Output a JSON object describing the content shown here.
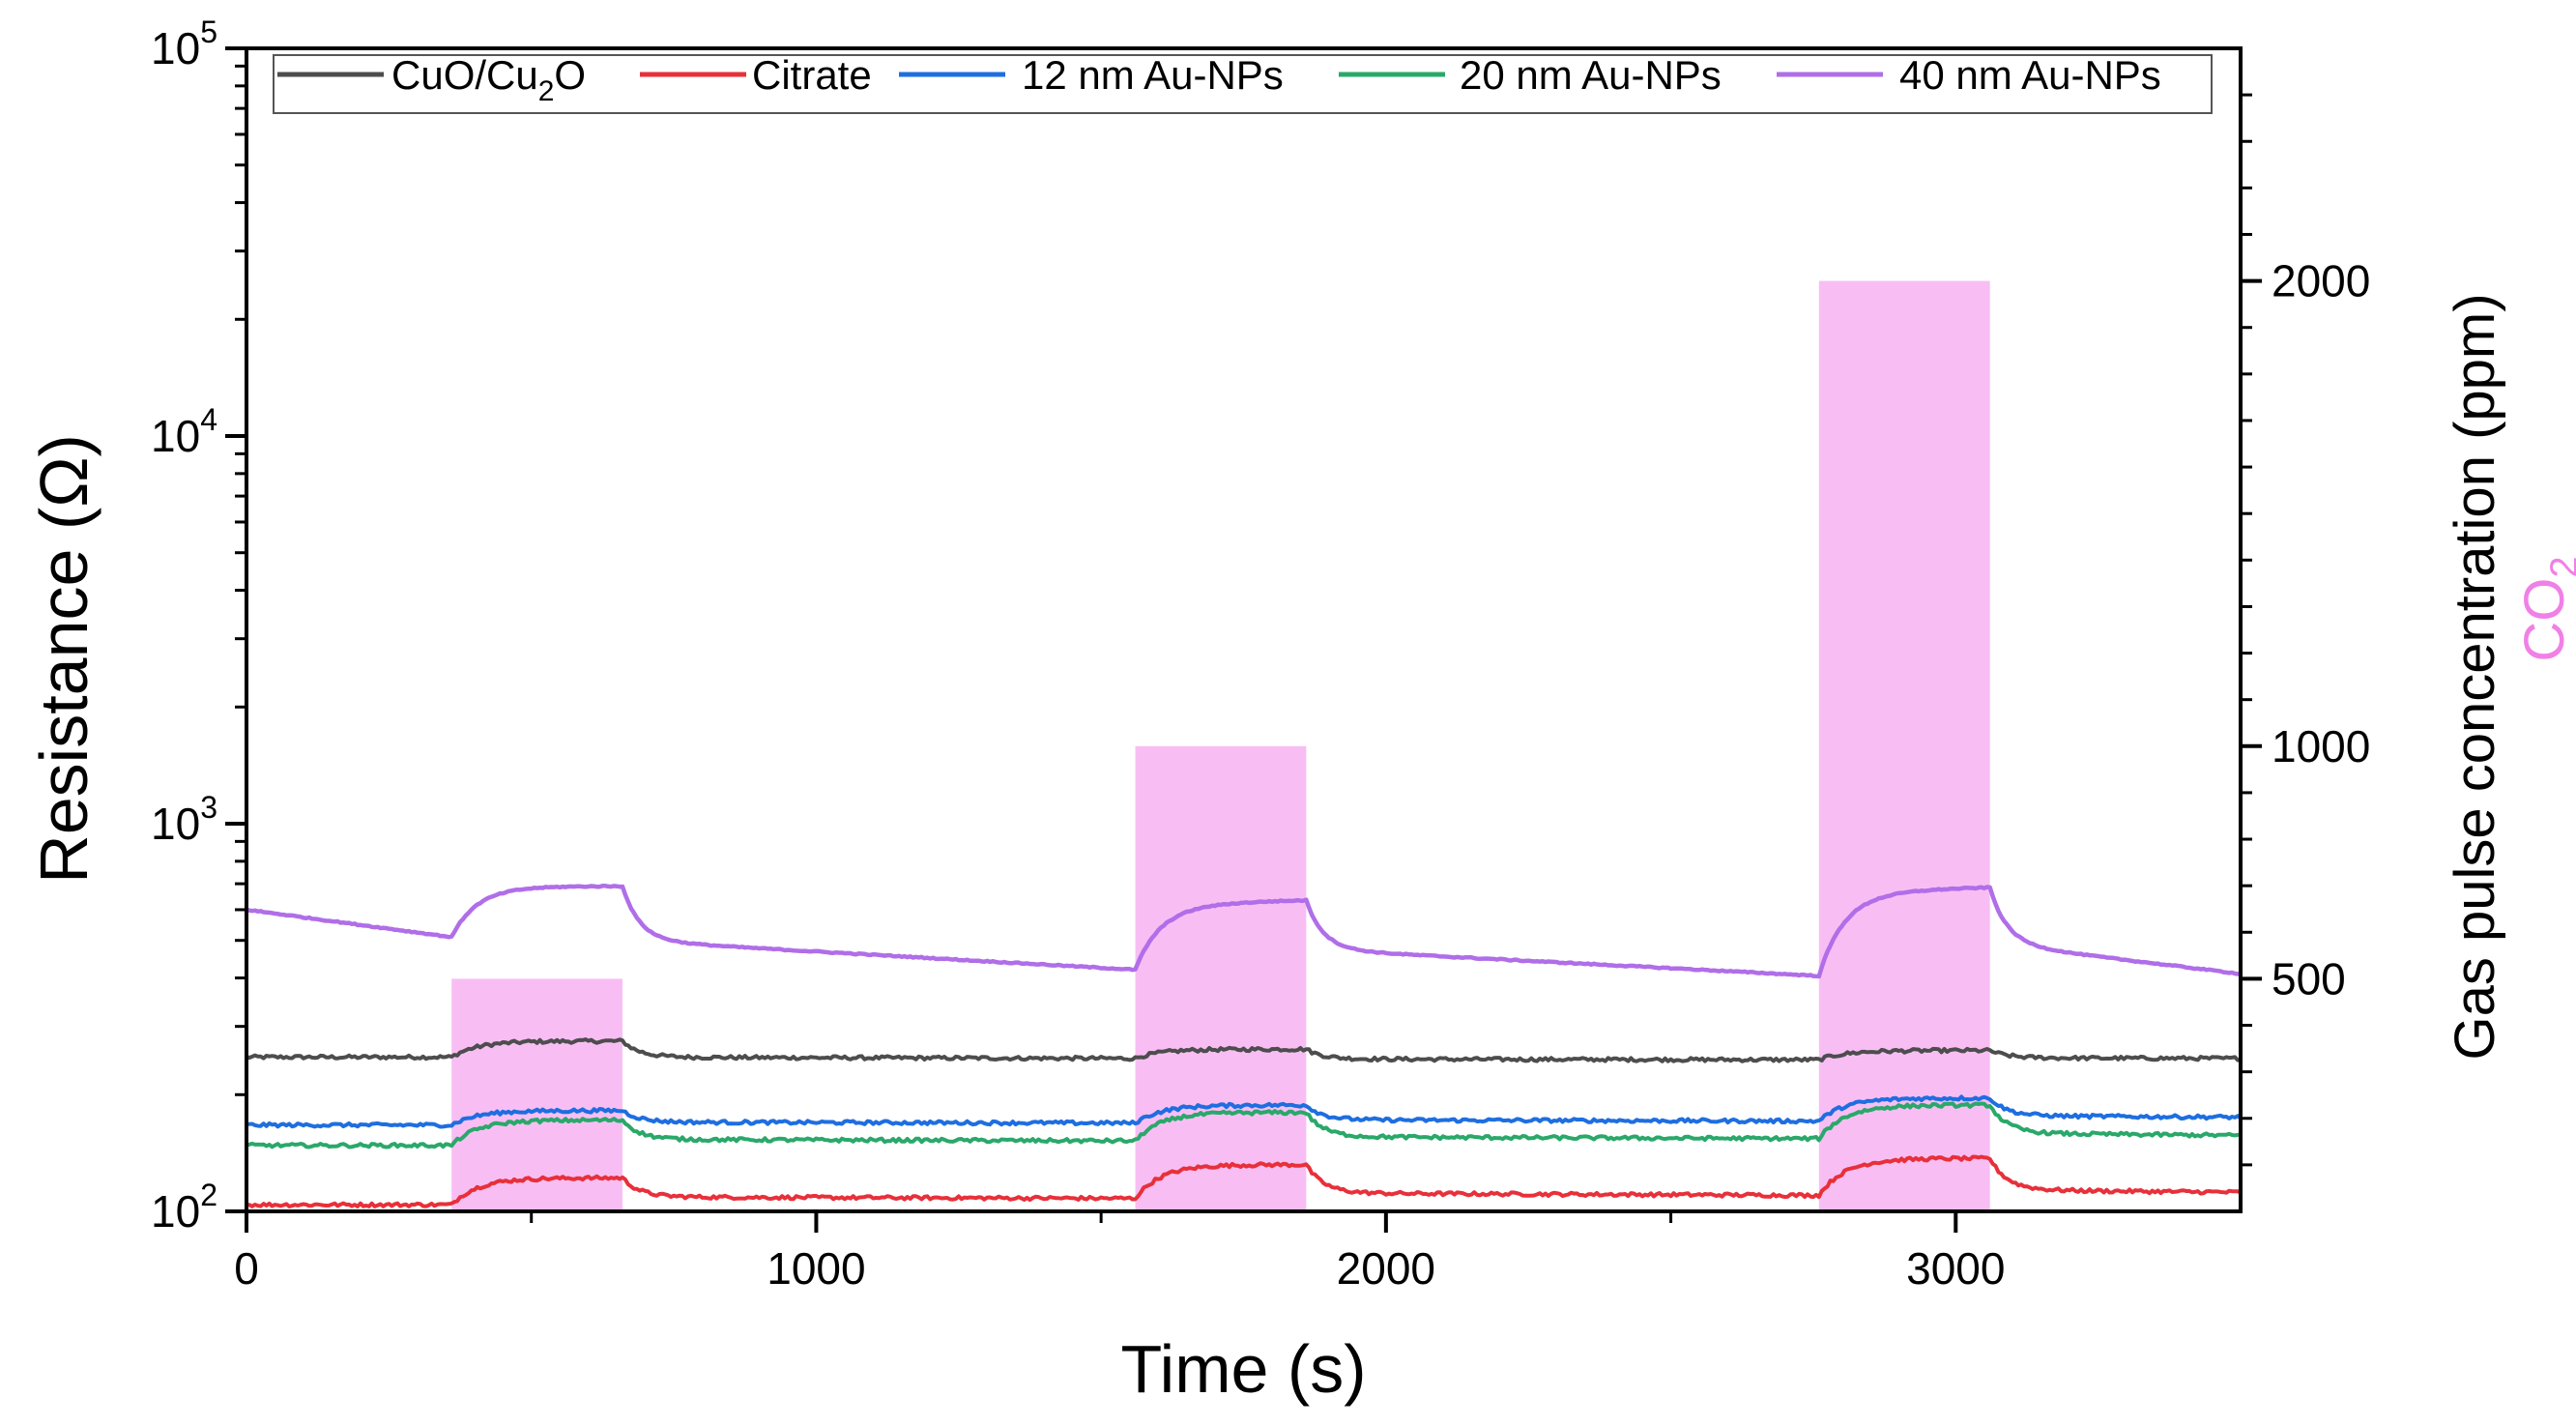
{
  "chart_data": {
    "type": "line",
    "xlabel": "Time (s)",
    "ylabel": "Resistance (Ω)",
    "y2label": "Gas pulse concentration (ppm)",
    "y2label_gas": "CO",
    "y2label_gas_sub": "2",
    "xlim": [
      0,
      3500
    ],
    "ylim": [
      100,
      100000
    ],
    "yscale": "log",
    "y2lim": [
      0,
      2500
    ],
    "x_ticks": [
      0,
      1000,
      2000,
      3000
    ],
    "x_tick_labels": [
      "0",
      "1000",
      "2000",
      "3000"
    ],
    "y_ticks": [
      100,
      1000,
      10000,
      100000
    ],
    "y_tick_labels": [
      {
        "base": "10",
        "exp": "2"
      },
      {
        "base": "10",
        "exp": "3"
      },
      {
        "base": "10",
        "exp": "4"
      },
      {
        "base": "10",
        "exp": "5"
      }
    ],
    "y2_ticks": [
      500,
      1000,
      2000
    ],
    "y2_tick_labels": [
      "500",
      "1000",
      "2000"
    ],
    "gas_color": "#f5a3f0",
    "gas_label_color": "#f080e6",
    "gas_pulses": [
      {
        "start": 360,
        "end": 660,
        "ppm": 500
      },
      {
        "start": 1560,
        "end": 1860,
        "ppm": 1000
      },
      {
        "start": 2760,
        "end": 3060,
        "ppm": 2000
      }
    ],
    "legend_position": "top",
    "series": [
      {
        "name": "CuO/Cu",
        "name_sub": "2",
        "name_tail": "O",
        "color": "#4d4d4d",
        "base": [
          250,
          248,
          246
        ],
        "peak": [
          275,
          262,
          260
        ],
        "end_value": 248
      },
      {
        "name": "Citrate",
        "color": "#e8303a",
        "base": [
          104,
          108,
          110
        ],
        "peak": [
          122,
          132,
          137
        ],
        "end_value": 112
      },
      {
        "name": "12 nm Au-NPs",
        "color": "#1e6ee0",
        "base": [
          167,
          169,
          171
        ],
        "peak": [
          182,
          188,
          196
        ],
        "end_value": 175
      },
      {
        "name": "20 nm Au-NPs",
        "color": "#2aa86a",
        "base": [
          148,
          152,
          154
        ],
        "peak": [
          172,
          180,
          188
        ],
        "end_value": 157
      },
      {
        "name": "40 nm Au-NPs",
        "color": "#b06ee8",
        "base": [
          600,
          420,
          405
        ],
        "peak": [
          690,
          635,
          685
        ],
        "end_value": 410
      }
    ]
  }
}
